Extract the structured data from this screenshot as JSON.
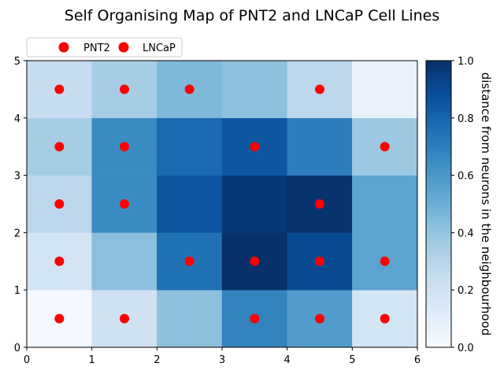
{
  "chart_data": {
    "type": "heatmap",
    "title": "Self Organising Map of PNT2 and LNCaP Cell Lines",
    "xlim": [
      0,
      6
    ],
    "ylim": [
      0,
      5
    ],
    "x_ticks": [
      "0",
      "1",
      "2",
      "3",
      "4",
      "5",
      "6"
    ],
    "y_ticks": [
      "0",
      "1",
      "2",
      "3",
      "4",
      "5"
    ],
    "colormap": "Blues",
    "colorbar": {
      "label": "distance from neurons in the neighbourhood",
      "range": [
        0.0,
        1.0
      ],
      "ticks": [
        "0.0",
        "0.2",
        "0.4",
        "0.6",
        "0.8",
        "1.0"
      ]
    },
    "grid_values": [
      [
        0.02,
        0.2,
        0.42,
        0.68,
        0.58,
        0.18
      ],
      [
        0.18,
        0.42,
        0.75,
        1.0,
        0.9,
        0.55
      ],
      [
        0.28,
        0.65,
        0.85,
        0.97,
        0.99,
        0.55
      ],
      [
        0.35,
        0.65,
        0.78,
        0.85,
        0.7,
        0.38
      ],
      [
        0.24,
        0.35,
        0.45,
        0.42,
        0.28,
        0.07
      ]
    ],
    "legend": {
      "placement": "top-left",
      "entries": [
        {
          "name": "PNT2",
          "color": "#ff0000"
        },
        {
          "name": "LNCaP",
          "color": "#ff0000"
        }
      ]
    },
    "markers": [
      {
        "x": 0.5,
        "y": 4.5
      },
      {
        "x": 1.5,
        "y": 4.5
      },
      {
        "x": 2.5,
        "y": 4.5
      },
      {
        "x": 4.5,
        "y": 4.5
      },
      {
        "x": 0.5,
        "y": 3.5
      },
      {
        "x": 1.5,
        "y": 3.5
      },
      {
        "x": 3.5,
        "y": 3.5
      },
      {
        "x": 5.5,
        "y": 3.5
      },
      {
        "x": 0.5,
        "y": 2.5
      },
      {
        "x": 1.5,
        "y": 2.5
      },
      {
        "x": 4.5,
        "y": 2.5
      },
      {
        "x": 0.5,
        "y": 1.5
      },
      {
        "x": 2.5,
        "y": 1.5
      },
      {
        "x": 3.5,
        "y": 1.5
      },
      {
        "x": 4.5,
        "y": 1.5
      },
      {
        "x": 5.5,
        "y": 1.5
      },
      {
        "x": 0.5,
        "y": 0.5
      },
      {
        "x": 1.5,
        "y": 0.5
      },
      {
        "x": 3.5,
        "y": 0.5
      },
      {
        "x": 4.5,
        "y": 0.5
      },
      {
        "x": 5.5,
        "y": 0.5
      }
    ],
    "marker_color": "#ff0000"
  }
}
